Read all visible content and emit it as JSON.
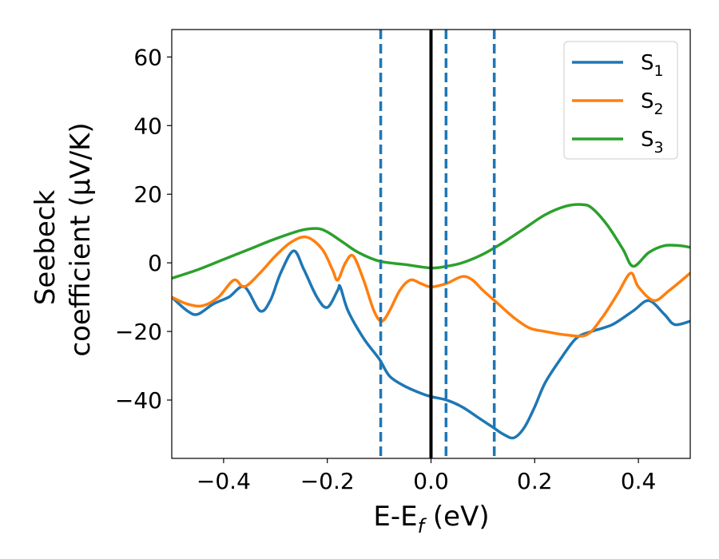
{
  "chart_data": {
    "type": "line",
    "xlabel": "E-E",
    "xlabel_sub": "f",
    "xlabel_unit": "(eV)",
    "ylabel_line1": "Seebeck",
    "ylabel_line2": "coefficient  (μV/K)",
    "xlim": [
      -0.5,
      0.5
    ],
    "ylim": [
      -57,
      68
    ],
    "x_ticks": [
      -0.4,
      -0.2,
      0.0,
      0.2,
      0.4
    ],
    "x_tick_labels": [
      "−0.4",
      "−0.2",
      "0.0",
      "0.2",
      "0.4"
    ],
    "y_ticks": [
      -40,
      -20,
      0,
      20,
      40,
      60
    ],
    "y_tick_labels": [
      "−40",
      "−20",
      "0",
      "20",
      "40",
      "60"
    ],
    "grid": false,
    "legend_position": "top-right",
    "vertical_lines": [
      {
        "x": 0.0,
        "style": "solid",
        "color": "#000000"
      },
      {
        "x": -0.097,
        "style": "dashed",
        "color": "#1f77b4"
      },
      {
        "x": 0.029,
        "style": "dashed",
        "color": "#1f77b4"
      },
      {
        "x": 0.122,
        "style": "dashed",
        "color": "#1f77b4"
      }
    ],
    "series": [
      {
        "name": "S",
        "subscript": "1",
        "color": "#1f77b4",
        "points": [
          [
            -0.5,
            -10
          ],
          [
            -0.47,
            -14
          ],
          [
            -0.45,
            -15
          ],
          [
            -0.42,
            -12
          ],
          [
            -0.39,
            -10
          ],
          [
            -0.36,
            -7
          ],
          [
            -0.33,
            -14
          ],
          [
            -0.31,
            -11
          ],
          [
            -0.29,
            -3
          ],
          [
            -0.265,
            3.5
          ],
          [
            -0.245,
            -2
          ],
          [
            -0.22,
            -10
          ],
          [
            -0.2,
            -13
          ],
          [
            -0.18,
            -8
          ],
          [
            -0.175,
            -7
          ],
          [
            -0.16,
            -14
          ],
          [
            -0.13,
            -22
          ],
          [
            -0.1,
            -28
          ],
          [
            -0.08,
            -33
          ],
          [
            -0.05,
            -36
          ],
          [
            -0.02,
            -38
          ],
          [
            0.0,
            -39
          ],
          [
            0.03,
            -40
          ],
          [
            0.06,
            -42
          ],
          [
            0.09,
            -45
          ],
          [
            0.12,
            -48
          ],
          [
            0.14,
            -50
          ],
          [
            0.16,
            -51
          ],
          [
            0.18,
            -48
          ],
          [
            0.2,
            -42
          ],
          [
            0.22,
            -35
          ],
          [
            0.25,
            -28
          ],
          [
            0.28,
            -22
          ],
          [
            0.31,
            -20
          ],
          [
            0.35,
            -18
          ],
          [
            0.39,
            -14
          ],
          [
            0.42,
            -11
          ],
          [
            0.45,
            -15
          ],
          [
            0.47,
            -18
          ],
          [
            0.5,
            -17
          ]
        ]
      },
      {
        "name": "S",
        "subscript": "2",
        "color": "#ff7f0e",
        "points": [
          [
            -0.5,
            -10
          ],
          [
            -0.47,
            -12
          ],
          [
            -0.44,
            -12.5
          ],
          [
            -0.41,
            -10
          ],
          [
            -0.38,
            -5
          ],
          [
            -0.36,
            -7
          ],
          [
            -0.33,
            -3
          ],
          [
            -0.3,
            2
          ],
          [
            -0.27,
            6
          ],
          [
            -0.24,
            7.5
          ],
          [
            -0.21,
            4
          ],
          [
            -0.19,
            -2
          ],
          [
            -0.18,
            -5
          ],
          [
            -0.165,
            0
          ],
          [
            -0.15,
            2
          ],
          [
            -0.13,
            -5
          ],
          [
            -0.11,
            -14
          ],
          [
            -0.095,
            -17
          ],
          [
            -0.08,
            -14
          ],
          [
            -0.06,
            -8
          ],
          [
            -0.04,
            -5
          ],
          [
            -0.02,
            -6
          ],
          [
            0.0,
            -7
          ],
          [
            0.03,
            -6
          ],
          [
            0.06,
            -4
          ],
          [
            0.08,
            -5
          ],
          [
            0.1,
            -8
          ],
          [
            0.13,
            -12
          ],
          [
            0.16,
            -16
          ],
          [
            0.19,
            -19
          ],
          [
            0.22,
            -20
          ],
          [
            0.26,
            -21
          ],
          [
            0.3,
            -21
          ],
          [
            0.33,
            -16
          ],
          [
            0.36,
            -9
          ],
          [
            0.385,
            -3
          ],
          [
            0.4,
            -7
          ],
          [
            0.43,
            -11
          ],
          [
            0.46,
            -8
          ],
          [
            0.5,
            -3
          ]
        ]
      },
      {
        "name": "S",
        "subscript": "3",
        "color": "#2ca02c",
        "points": [
          [
            -0.5,
            -4.5
          ],
          [
            -0.45,
            -2
          ],
          [
            -0.4,
            1
          ],
          [
            -0.35,
            4
          ],
          [
            -0.3,
            7
          ],
          [
            -0.25,
            9.5
          ],
          [
            -0.22,
            10
          ],
          [
            -0.2,
            9
          ],
          [
            -0.17,
            6
          ],
          [
            -0.14,
            3
          ],
          [
            -0.1,
            0.5
          ],
          [
            -0.05,
            -0.5
          ],
          [
            0.0,
            -1.5
          ],
          [
            0.03,
            -1
          ],
          [
            0.06,
            0
          ],
          [
            0.1,
            2.5
          ],
          [
            0.14,
            6
          ],
          [
            0.18,
            10
          ],
          [
            0.22,
            14
          ],
          [
            0.26,
            16.5
          ],
          [
            0.29,
            17
          ],
          [
            0.31,
            16
          ],
          [
            0.34,
            11
          ],
          [
            0.37,
            4
          ],
          [
            0.39,
            -1
          ],
          [
            0.42,
            3
          ],
          [
            0.45,
            5
          ],
          [
            0.48,
            5
          ],
          [
            0.5,
            4.5
          ]
        ]
      }
    ]
  }
}
